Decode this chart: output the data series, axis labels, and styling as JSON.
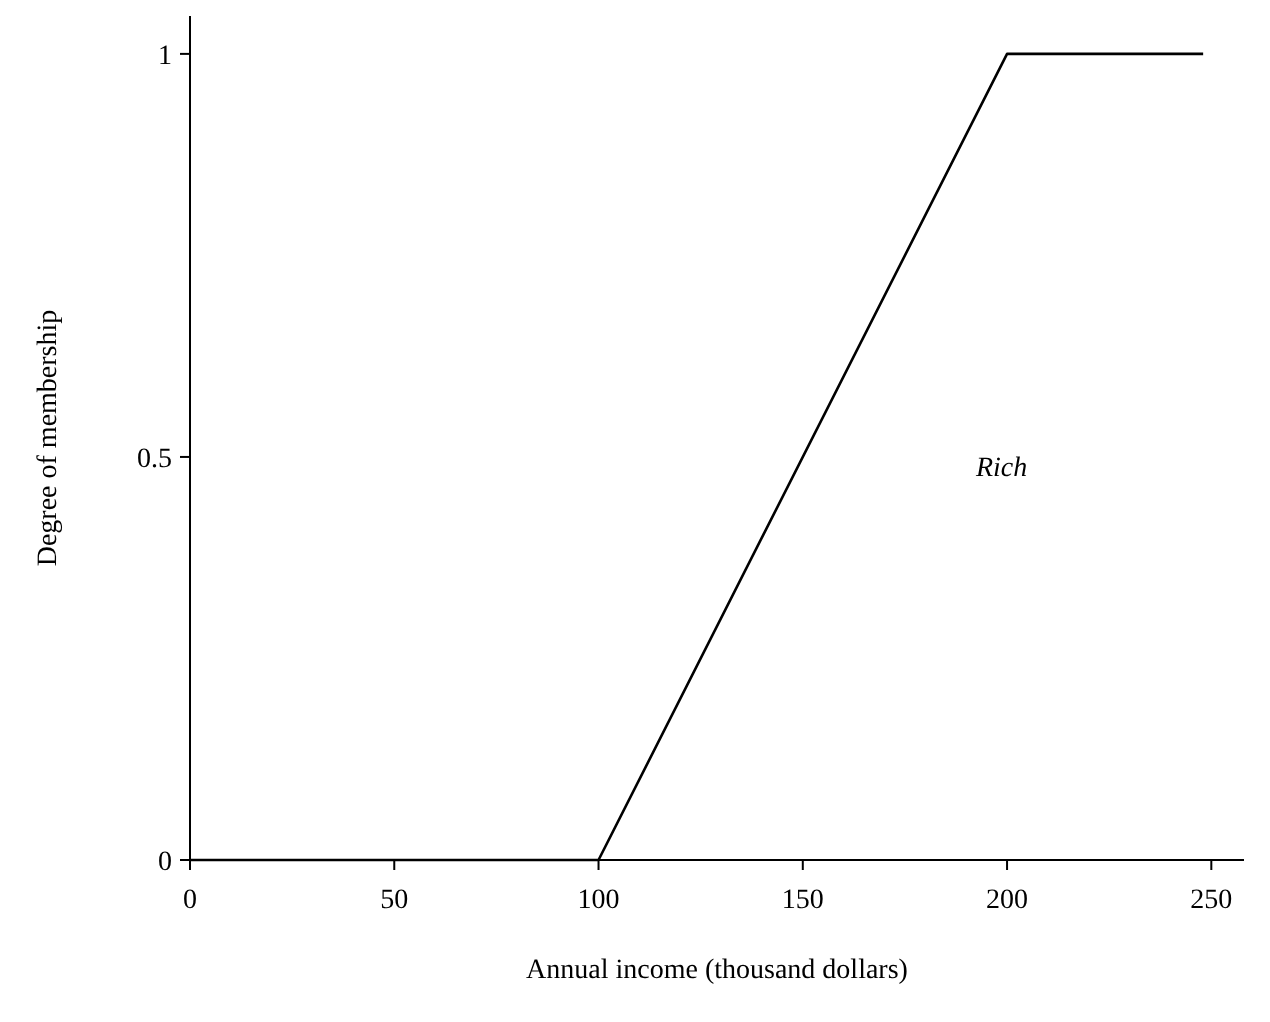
{
  "chart_data": {
    "type": "line",
    "xlabel": "Annual income (thousand dollars)",
    "ylabel": "Degree of membership",
    "x": [
      0,
      100,
      200,
      248
    ],
    "series": [
      {
        "color": "#000000",
        "values": [
          0,
          0,
          1,
          1
        ]
      }
    ],
    "xlim": [
      0,
      258
    ],
    "xticks": [
      0,
      50,
      100,
      150,
      200,
      250
    ],
    "ylim": [
      0,
      1.047
    ],
    "yticks": [
      0,
      0.5,
      1
    ],
    "annotations": [
      "Rich"
    ],
    "grid": false,
    "marker": "none",
    "line_style": "solid"
  }
}
